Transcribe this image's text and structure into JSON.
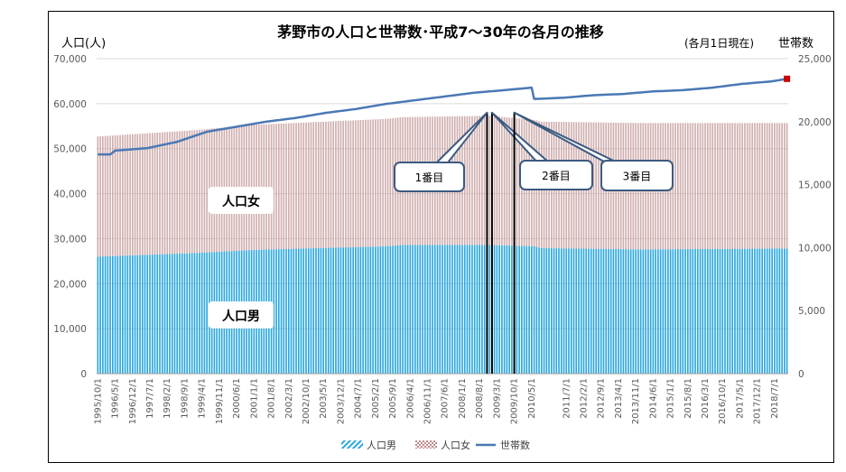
{
  "chart_data": {
    "type": "bar",
    "stacked": true,
    "title": "茅野市の人口と世帯数･平成7～30年の各月の推移",
    "subtitle": "(各月1日現在)",
    "ylabel": "人口(人)",
    "y2label": "世帯数",
    "ylim": [
      0,
      70000
    ],
    "y2lim": [
      0,
      25000
    ],
    "yticks": [
      "0",
      "10,000",
      "20,000",
      "30,000",
      "40,000",
      "50,000",
      "60,000",
      "70,000"
    ],
    "y2ticks": [
      "0",
      "5,000",
      "10,000",
      "15,000",
      "20,000",
      "25,000"
    ],
    "xlim": [
      "1995-10",
      "2019-01"
    ],
    "xtick_labels": [
      "1995/10/1",
      "1996/5/1",
      "1996/12/1",
      "1997/7/1",
      "1998/2/1",
      "1998/9/1",
      "1999/4/1",
      "1999/11/1",
      "2000/6/1",
      "2001/1/1",
      "2001/8/1",
      "2002/3/1",
      "2002/10/1",
      "2003/5/1",
      "2003/12/1",
      "2004/7/1",
      "2005/2/1",
      "2005/9/1",
      "2006/4/1",
      "2006/11/1",
      "2007/6/1",
      "2008/1/1",
      "2008/8/1",
      "2009/3/1",
      "2009/10/1",
      "2010/5/1",
      "2011/7/1",
      "2012/2/1",
      "2012/9/1",
      "2013/4/1",
      "2013/11/1",
      "2014/6/1",
      "2015/1/1",
      "2015/8/1",
      "2016/3/1",
      "2016/10/1",
      "2017/5/1",
      "2017/12/1",
      "2018/7/1"
    ],
    "grid": true,
    "legend_position": "bottom",
    "series": [
      {
        "name": "人口男",
        "kind": "bar",
        "axis": "left",
        "color": "#2aa7dd",
        "points": [
          [
            "1995-10",
            26000
          ],
          [
            "1999-01",
            26800
          ],
          [
            "2001-01",
            27500
          ],
          [
            "2005-06",
            28300
          ],
          [
            "2006-01",
            28600
          ],
          [
            "2008-12",
            28600
          ],
          [
            "2010-06",
            28300
          ],
          [
            "2010-09",
            27900
          ],
          [
            "2014-01",
            27600
          ],
          [
            "2018-12",
            27800
          ]
        ]
      },
      {
        "name": "人口女",
        "kind": "bar",
        "axis": "left",
        "color": "#c8a0a0",
        "points": [
          [
            "1995-10",
            26700
          ],
          [
            "1999-01",
            27300
          ],
          [
            "2001-01",
            27800
          ],
          [
            "2005-06",
            28300
          ],
          [
            "2006-01",
            28400
          ],
          [
            "2008-12",
            28700
          ],
          [
            "2010-06",
            28100
          ],
          [
            "2010-09",
            28100
          ],
          [
            "2014-01",
            28100
          ],
          [
            "2018-12",
            27900
          ]
        ]
      },
      {
        "name": "世帯数",
        "kind": "line",
        "axis": "right",
        "color": "#4a78b5",
        "points": [
          [
            "1995-10",
            17400
          ],
          [
            "1996-03",
            17400
          ],
          [
            "1996-05",
            17700
          ],
          [
            "1997-06",
            17900
          ],
          [
            "1998-06",
            18400
          ],
          [
            "1999-06",
            19200
          ],
          [
            "2000-06",
            19600
          ],
          [
            "2001-06",
            20000
          ],
          [
            "2002-06",
            20300
          ],
          [
            "2003-06",
            20700
          ],
          [
            "2004-06",
            21000
          ],
          [
            "2005-06",
            21400
          ],
          [
            "2006-06",
            21700
          ],
          [
            "2007-06",
            22000
          ],
          [
            "2008-06",
            22300
          ],
          [
            "2009-06",
            22500
          ],
          [
            "2010-05",
            22700
          ],
          [
            "2010-06",
            21800
          ],
          [
            "2011-06",
            21900
          ],
          [
            "2012-06",
            22100
          ],
          [
            "2013-06",
            22200
          ],
          [
            "2014-06",
            22400
          ],
          [
            "2015-06",
            22500
          ],
          [
            "2016-06",
            22700
          ],
          [
            "2017-06",
            23000
          ],
          [
            "2018-06",
            23200
          ],
          [
            "2018-12",
            23400
          ]
        ]
      }
    ],
    "highlight_point": {
      "series": "世帯数",
      "x": "2018-12",
      "color": "#cc0000"
    },
    "annotations": [
      {
        "text": "人口女"
      },
      {
        "text": "人口男"
      },
      {
        "text": "1番目",
        "x": "2008-11"
      },
      {
        "text": "2番目",
        "x": "2009-01"
      },
      {
        "text": "3番目",
        "x": "2009-10"
      }
    ]
  }
}
